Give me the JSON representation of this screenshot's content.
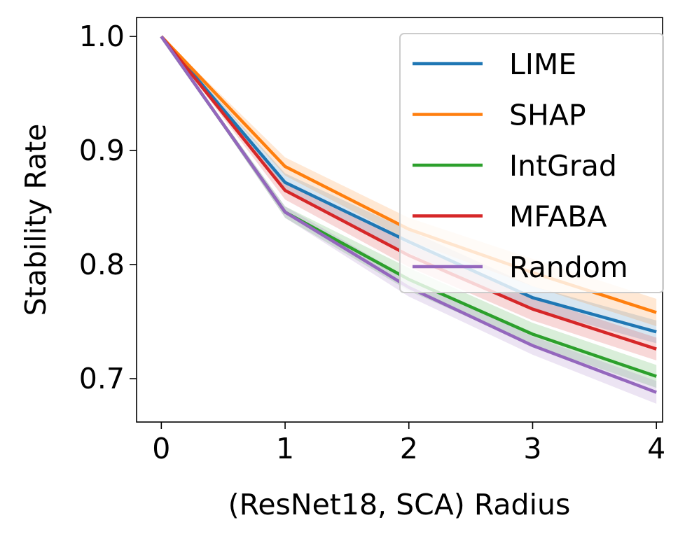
{
  "chart_data": {
    "type": "line",
    "title": "",
    "xlabel": "(ResNet18, SCA) Radius",
    "ylabel": "Stability Rate",
    "x": [
      0,
      1,
      2,
      3,
      4
    ],
    "xticks": [
      "0",
      "1",
      "2",
      "3",
      "4"
    ],
    "yticks": [
      "0.7",
      "0.8",
      "0.9",
      "1.0"
    ],
    "ytick_values": [
      0.7,
      0.8,
      0.9,
      1.0
    ],
    "xlim": [
      -0.2,
      4.05
    ],
    "ylim": [
      0.662,
      1.0166
    ],
    "grid": false,
    "legend_position": "top-right",
    "series": [
      {
        "name": "LIME",
        "color": "#1f77b4",
        "values": [
          1.0,
          0.872,
          0.82,
          0.771,
          0.741
        ],
        "band": [
          0,
          0.008,
          0.01,
          0.01,
          0.01
        ]
      },
      {
        "name": "SHAP",
        "color": "#ff7f0e",
        "values": [
          1.0,
          0.886,
          0.831,
          0.793,
          0.758
        ],
        "band": [
          0,
          0.008,
          0.01,
          0.012,
          0.012
        ]
      },
      {
        "name": "IntGrad",
        "color": "#2ca02c",
        "values": [
          1.0,
          0.846,
          0.787,
          0.739,
          0.702
        ],
        "band": [
          0,
          0.005,
          0.01,
          0.01,
          0.01
        ]
      },
      {
        "name": "MFABA",
        "color": "#d62728",
        "values": [
          1.0,
          0.865,
          0.808,
          0.761,
          0.726
        ],
        "band": [
          0,
          0.008,
          0.01,
          0.01,
          0.01
        ]
      },
      {
        "name": "Random",
        "color": "#9467bd",
        "values": [
          1.0,
          0.846,
          0.78,
          0.729,
          0.688
        ],
        "band": [
          0,
          0.005,
          0.008,
          0.008,
          0.01
        ]
      }
    ]
  }
}
